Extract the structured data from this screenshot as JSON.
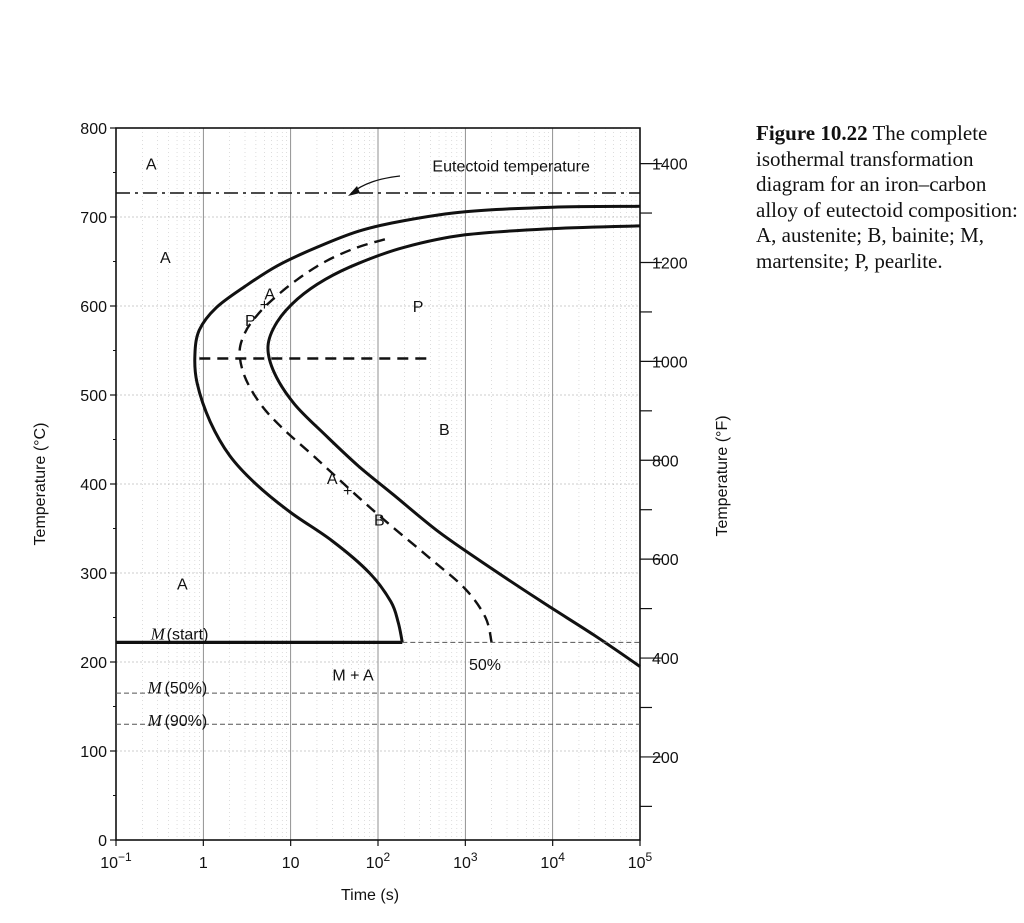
{
  "caption": {
    "figure": "Figure 10.22",
    "text": "The complete isothermal transformation diagram for an iron–carbon alloy of eutectoid composition: A, austenite; B, bainite; M, martensite; P, pearlite."
  },
  "chart_data": {
    "type": "line",
    "xlabel": "Time (s)",
    "ylabel": "Temperature (°C)",
    "y2label": "Temperature (°F)",
    "xscale": "log",
    "xlim": [
      0.1,
      100000
    ],
    "ylim": [
      0,
      800
    ],
    "y2lim": [
      32,
      1472
    ],
    "grid": true,
    "xticks": [
      {
        "value": 0.1,
        "base": "10",
        "exp": "−1"
      },
      {
        "value": 1,
        "base": "1",
        "exp": ""
      },
      {
        "value": 10,
        "base": "10",
        "exp": ""
      },
      {
        "value": 100,
        "base": "10",
        "exp": "2"
      },
      {
        "value": 1000,
        "base": "10",
        "exp": "3"
      },
      {
        "value": 10000,
        "base": "10",
        "exp": "4"
      },
      {
        "value": 100000,
        "base": "10",
        "exp": "5"
      }
    ],
    "yticks": [
      0,
      100,
      200,
      300,
      400,
      500,
      600,
      700,
      800
    ],
    "y2ticks": [
      200,
      400,
      600,
      800,
      1000,
      1200,
      1400
    ],
    "series": [
      {
        "style": "solid",
        "points": [
          [
            100000,
            712
          ],
          [
            10000,
            711
          ],
          [
            1000,
            706
          ],
          [
            200,
            696
          ],
          [
            60,
            684
          ],
          [
            20,
            666
          ],
          [
            7,
            645
          ],
          [
            3,
            622
          ],
          [
            1.4,
            598
          ],
          [
            0.9,
            573
          ],
          [
            0.8,
            545
          ],
          [
            0.85,
            513
          ],
          [
            1.2,
            470
          ],
          [
            2,
            432
          ],
          [
            4,
            400
          ],
          [
            10,
            368
          ],
          [
            30,
            336
          ],
          [
            80,
            300
          ],
          [
            140,
            268
          ],
          [
            170,
            245
          ],
          [
            190,
            222
          ]
        ]
      },
      {
        "style": "solid",
        "points": [
          [
            100000,
            690
          ],
          [
            10000,
            687
          ],
          [
            1000,
            680
          ],
          [
            200,
            666
          ],
          [
            60,
            648
          ],
          [
            25,
            630
          ],
          [
            12,
            608
          ],
          [
            7,
            582
          ],
          [
            5.5,
            555
          ],
          [
            6.5,
            525
          ],
          [
            11,
            490
          ],
          [
            25,
            455
          ],
          [
            60,
            420
          ],
          [
            150,
            388
          ],
          [
            500,
            346
          ],
          [
            2000,
            305
          ],
          [
            8000,
            266
          ],
          [
            30000,
            230
          ],
          [
            100000,
            195
          ]
        ]
      },
      {
        "style": "dashed",
        "points": [
          [
            120,
            675
          ],
          [
            55,
            665
          ],
          [
            25,
            650
          ],
          [
            12,
            630
          ],
          [
            6,
            606
          ],
          [
            4,
            588
          ],
          [
            3,
            570
          ],
          [
            2.6,
            548
          ],
          [
            3,
            520
          ],
          [
            4.5,
            490
          ],
          [
            8,
            463
          ],
          [
            20,
            428
          ],
          [
            50,
            392
          ],
          [
            130,
            356
          ],
          [
            400,
            316
          ],
          [
            1000,
            282
          ],
          [
            1700,
            250
          ],
          [
            2000,
            222
          ]
        ]
      },
      {
        "style": "dashed",
        "points": [
          [
            0.9,
            541
          ],
          [
            400,
            541
          ]
        ]
      },
      {
        "style": "dashdot",
        "points": [
          [
            0.1,
            727
          ],
          [
            100000,
            727
          ]
        ]
      },
      {
        "style": "thick",
        "points": [
          [
            0.1,
            222
          ],
          [
            190,
            222
          ]
        ]
      },
      {
        "style": "thin-dashed",
        "points": [
          [
            190,
            222
          ],
          [
            100000,
            222
          ]
        ]
      },
      {
        "style": "thin-dashed",
        "points": [
          [
            0.1,
            165
          ],
          [
            100000,
            165
          ]
        ]
      },
      {
        "style": "thin-dashed",
        "points": [
          [
            0.1,
            130
          ],
          [
            100000,
            130
          ]
        ]
      }
    ],
    "labels": [
      {
        "text": "Eutectoid temperature",
        "x": 420,
        "y": 758,
        "anchor": "start",
        "font": "sans"
      },
      {
        "text": "A",
        "x": 0.22,
        "y": 760,
        "anchor": "start",
        "font": "sans"
      },
      {
        "text": "A",
        "x": 0.1,
        "y": 655,
        "anchor": "start",
        "font": "sans"
      },
      {
        "text": "A",
        "x": 5,
        "y": 614,
        "anchor": "start",
        "font": "sans"
      },
      {
        "text": "P",
        "x": 3,
        "y": 584,
        "anchor": "start",
        "font": "sans"
      },
      {
        "text": "P",
        "x": 250,
        "y": 600,
        "anchor": "start",
        "font": "sans"
      },
      {
        "text": "B",
        "x": 500,
        "y": 462,
        "anchor": "start",
        "font": "sans"
      },
      {
        "text": "A",
        "x": 26,
        "y": 407,
        "anchor": "start",
        "font": "sans"
      },
      {
        "text": "B",
        "x": 90,
        "y": 360,
        "anchor": "start",
        "font": "sans"
      },
      {
        "text": "A",
        "x": 0.5,
        "y": 288,
        "anchor": "start",
        "font": "sans"
      },
      {
        "text": "M + A",
        "x": 30,
        "y": 186,
        "anchor": "start",
        "font": "sans"
      },
      {
        "text": "50%",
        "x": 1100,
        "y": 198,
        "anchor": "start",
        "font": "sans"
      },
      {
        "text": "M",
        "x": 0.25,
        "y": 232,
        "anchor": "start",
        "font": "ital"
      },
      {
        "text": "(start)",
        "x": 0.38,
        "y": 232,
        "anchor": "start",
        "font": "sans"
      },
      {
        "text": "M",
        "x": 0.23,
        "y": 172,
        "anchor": "start",
        "font": "ital"
      },
      {
        "text": "(50%)",
        "x": 0.36,
        "y": 172,
        "anchor": "start",
        "font": "sans"
      },
      {
        "text": "M",
        "x": 0.23,
        "y": 135,
        "anchor": "start",
        "font": "ital"
      },
      {
        "text": "(90%)",
        "x": 0.36,
        "y": 135,
        "anchor": "start",
        "font": "sans"
      }
    ],
    "markers": [
      {
        "symbol": "+",
        "x": 5,
        "y": 602
      },
      {
        "symbol": "+",
        "x": 45,
        "y": 393
      }
    ]
  }
}
